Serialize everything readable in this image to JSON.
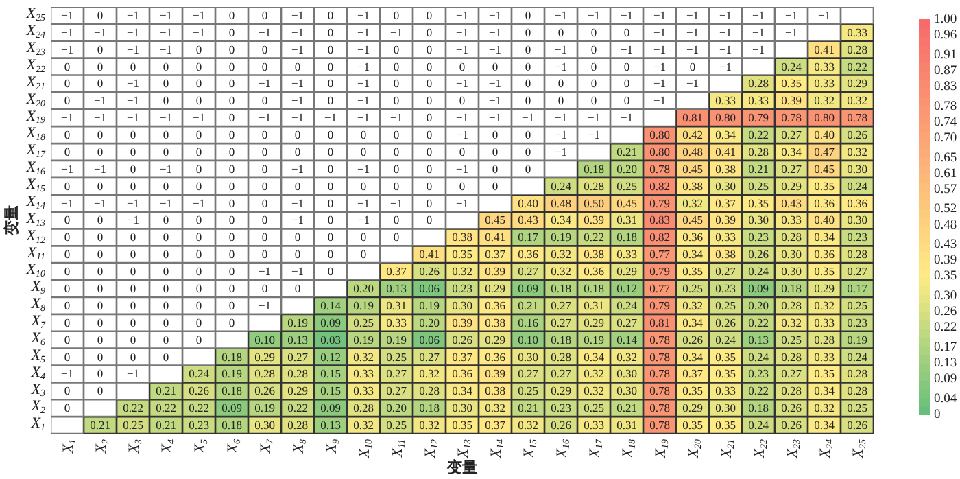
{
  "chart_data": {
    "type": "heatmap",
    "xlabel": "变量",
    "ylabel": "变量",
    "categories": [
      "X$_{1}$",
      "X$_{2}$",
      "X$_{3}$",
      "X$_{4}$",
      "X$_{5}$",
      "X$_{6}$",
      "X$_{7}$",
      "X$_{8}$",
      "X$_{9}$",
      "X$_{10}$",
      "X$_{11}$",
      "X$_{12}$",
      "X$_{13}$",
      "X$_{14}$",
      "X$_{15}$",
      "X$_{16}$",
      "X$_{17}$",
      "X$_{18}$",
      "X$_{19}$",
      "X$_{20}$",
      "X$_{21}$",
      "X$_{22}$",
      "X$_{23}$",
      "X$_{24}$",
      "X$_{25}$"
    ],
    "y_categories": [
      "X$_{25}$",
      "X$_{24}$",
      "X$_{23}$",
      "X$_{22}$",
      "X$_{21}$",
      "X$_{20}$",
      "X$_{19}$",
      "X$_{18}$",
      "X$_{17}$",
      "X$_{16}$",
      "X$_{15}$",
      "X$_{14}$",
      "X$_{13}$",
      "X$_{12}$",
      "X$_{11}$",
      "X$_{10}$",
      "X$_{9}$",
      "X$_{8}$",
      "X$_{7}$",
      "X$_{6}$",
      "X$_{5}$",
      "X$_{4}$",
      "X$_{3}$",
      "X$_{2}$",
      "X$_{1}$"
    ],
    "clim": [
      0,
      1
    ],
    "cticks": [
      0,
      0.04,
      0.09,
      0.13,
      0.17,
      0.22,
      0.26,
      {
        "value": 0.3,
        "label": "0.30"
      },
      0.35,
      0.39,
      0.43,
      0.48,
      0.52,
      0.57,
      0.61,
      0.65,
      {
        "value": 0.7,
        "label": "0.70"
      },
      0.74,
      0.78,
      0.83,
      0.87,
      0.91,
      0.96,
      {
        "value": 1,
        "label": "1.00"
      }
    ],
    "cells": [
      [
        null,
        null,
        null,
        null,
        null,
        null,
        null,
        null,
        null,
        null,
        null,
        null,
        null,
        null,
        null,
        null,
        null,
        null,
        null,
        null,
        null,
        null,
        null,
        null,
        null
      ],
      [
        null,
        null,
        null,
        null,
        null,
        null,
        null,
        null,
        null,
        null,
        null,
        null,
        null,
        null,
        null,
        null,
        null,
        null,
        null,
        null,
        null,
        null,
        null,
        null,
        0.33
      ],
      [
        null,
        null,
        null,
        null,
        null,
        null,
        null,
        null,
        null,
        null,
        null,
        null,
        null,
        null,
        null,
        null,
        null,
        null,
        null,
        null,
        null,
        null,
        null,
        0.41,
        0.28
      ],
      [
        null,
        null,
        null,
        null,
        null,
        null,
        null,
        null,
        null,
        null,
        null,
        null,
        null,
        null,
        null,
        null,
        null,
        null,
        null,
        null,
        null,
        null,
        0.24,
        0.33,
        0.22
      ],
      [
        null,
        null,
        null,
        null,
        null,
        null,
        null,
        null,
        null,
        null,
        null,
        null,
        null,
        null,
        null,
        null,
        null,
        null,
        null,
        null,
        null,
        0.28,
        0.35,
        0.33,
        0.29
      ],
      [
        null,
        null,
        null,
        null,
        null,
        null,
        null,
        null,
        null,
        null,
        null,
        null,
        null,
        null,
        null,
        null,
        null,
        null,
        null,
        null,
        0.33,
        0.33,
        0.39,
        0.32,
        0.32
      ],
      [
        null,
        null,
        null,
        null,
        null,
        null,
        null,
        null,
        null,
        null,
        null,
        null,
        null,
        null,
        null,
        null,
        null,
        null,
        null,
        0.81,
        0.8,
        0.79,
        0.78,
        0.8,
        0.78
      ],
      [
        null,
        null,
        null,
        null,
        null,
        null,
        null,
        null,
        null,
        null,
        null,
        null,
        null,
        null,
        null,
        null,
        null,
        null,
        0.8,
        0.42,
        0.34,
        0.22,
        0.27,
        0.4,
        0.26
      ],
      [
        null,
        null,
        null,
        null,
        null,
        null,
        null,
        null,
        null,
        null,
        null,
        null,
        null,
        null,
        null,
        null,
        null,
        0.21,
        0.8,
        0.48,
        0.41,
        0.28,
        0.34,
        0.47,
        0.32
      ],
      [
        null,
        null,
        null,
        null,
        null,
        null,
        null,
        null,
        null,
        null,
        null,
        null,
        null,
        null,
        null,
        null,
        0.18,
        0.2,
        0.78,
        0.45,
        0.38,
        0.21,
        0.27,
        0.45,
        0.3
      ],
      [
        null,
        null,
        null,
        null,
        null,
        null,
        null,
        null,
        null,
        null,
        null,
        null,
        null,
        null,
        null,
        0.24,
        0.28,
        0.25,
        0.82,
        0.38,
        0.3,
        0.25,
        0.29,
        0.35,
        0.24
      ],
      [
        null,
        null,
        null,
        null,
        null,
        null,
        null,
        null,
        null,
        null,
        null,
        null,
        null,
        null,
        0.4,
        0.48,
        0.5,
        0.45,
        0.79,
        0.32,
        0.37,
        0.35,
        0.43,
        0.36,
        0.36
      ],
      [
        null,
        null,
        null,
        null,
        null,
        null,
        null,
        null,
        null,
        null,
        null,
        null,
        null,
        0.45,
        0.43,
        0.34,
        0.39,
        0.31,
        0.83,
        0.45,
        0.39,
        0.3,
        0.33,
        0.4,
        0.3
      ],
      [
        null,
        null,
        null,
        null,
        null,
        null,
        null,
        null,
        null,
        null,
        null,
        null,
        0.38,
        0.41,
        0.17,
        0.19,
        0.22,
        0.18,
        0.82,
        0.36,
        0.33,
        0.23,
        0.28,
        0.34,
        0.23
      ],
      [
        null,
        null,
        null,
        null,
        null,
        null,
        null,
        null,
        null,
        null,
        null,
        0.41,
        0.35,
        0.37,
        0.36,
        0.32,
        0.38,
        0.33,
        0.77,
        0.34,
        0.38,
        0.26,
        0.3,
        0.36,
        0.28
      ],
      [
        null,
        null,
        null,
        null,
        null,
        null,
        null,
        null,
        null,
        null,
        0.37,
        0.26,
        0.32,
        0.39,
        0.27,
        0.32,
        0.36,
        0.29,
        0.79,
        0.35,
        0.27,
        0.24,
        0.3,
        0.35,
        0.27
      ],
      [
        null,
        null,
        null,
        null,
        null,
        null,
        null,
        null,
        null,
        0.2,
        0.13,
        0.06,
        0.23,
        0.29,
        0.09,
        0.18,
        0.18,
        0.12,
        0.77,
        0.25,
        0.23,
        0.09,
        0.18,
        0.29,
        0.17
      ],
      [
        null,
        null,
        null,
        null,
        null,
        null,
        null,
        null,
        0.14,
        0.19,
        0.31,
        0.19,
        0.3,
        0.36,
        0.21,
        0.27,
        0.31,
        0.24,
        0.79,
        0.32,
        0.25,
        0.2,
        0.28,
        0.32,
        0.25
      ],
      [
        null,
        null,
        null,
        null,
        null,
        null,
        null,
        0.19,
        0.09,
        0.25,
        0.33,
        0.2,
        0.39,
        0.38,
        0.16,
        0.27,
        0.29,
        0.27,
        0.81,
        0.34,
        0.26,
        0.22,
        0.32,
        0.33,
        0.23
      ],
      [
        null,
        null,
        null,
        null,
        null,
        null,
        0.1,
        0.13,
        0.03,
        0.19,
        0.19,
        0.06,
        0.26,
        0.29,
        0.1,
        0.18,
        0.19,
        0.14,
        0.78,
        0.26,
        0.24,
        0.13,
        0.25,
        0.28,
        0.19
      ],
      [
        null,
        null,
        null,
        null,
        null,
        0.18,
        0.29,
        0.27,
        0.12,
        0.32,
        0.25,
        0.27,
        0.37,
        0.36,
        0.3,
        0.28,
        0.34,
        0.32,
        0.78,
        0.34,
        0.35,
        0.24,
        0.28,
        0.33,
        0.24
      ],
      [
        null,
        null,
        null,
        null,
        0.24,
        0.19,
        0.28,
        0.28,
        0.15,
        0.33,
        0.27,
        0.32,
        0.36,
        0.39,
        0.27,
        0.27,
        0.32,
        0.3,
        0.78,
        0.37,
        0.35,
        0.23,
        0.27,
        0.35,
        0.28
      ],
      [
        null,
        null,
        null,
        0.21,
        0.26,
        0.18,
        0.26,
        0.29,
        0.15,
        0.33,
        0.27,
        0.28,
        0.34,
        0.38,
        0.25,
        0.29,
        0.32,
        0.3,
        0.78,
        0.35,
        0.33,
        0.22,
        0.28,
        0.34,
        0.28
      ],
      [
        null,
        null,
        0.22,
        0.22,
        0.22,
        0.09,
        0.19,
        0.22,
        0.09,
        0.28,
        0.2,
        0.18,
        0.3,
        0.32,
        0.21,
        0.23,
        0.25,
        0.21,
        0.78,
        0.29,
        0.3,
        0.18,
        0.26,
        0.32,
        0.25
      ],
      [
        null,
        0.21,
        0.25,
        0.21,
        0.23,
        0.18,
        0.3,
        0.28,
        0.13,
        0.32,
        0.25,
        0.32,
        0.35,
        0.37,
        0.32,
        0.26,
        0.33,
        0.31,
        0.78,
        0.35,
        0.35,
        0.24,
        0.26,
        0.34,
        0.26
      ]
    ],
    "cell_labels": [
      [
        "−1",
        "0",
        "−1",
        "−1",
        "−1",
        "0",
        "0",
        "−1",
        "0",
        "−1",
        "0",
        "0",
        "−1",
        "−1",
        "0",
        "−1",
        "−1",
        "−1",
        "−1",
        "−1",
        "−1",
        "−1",
        "−1",
        "−1",
        null
      ],
      [
        "−1",
        "−1",
        "−1",
        "−1",
        "−1",
        "0",
        "−1",
        "−1",
        "0",
        "−1",
        "−1",
        "0",
        "−1",
        "−1",
        "0",
        "0",
        "0",
        "0",
        "−1",
        "−1",
        "−1",
        "−1",
        "−1",
        null,
        "0.33"
      ],
      [
        "−1",
        "0",
        "−1",
        "−1",
        "0",
        "0",
        "0",
        "−1",
        "0",
        "−1",
        "0",
        "0",
        "−1",
        "−1",
        "0",
        "−1",
        "0",
        "−1",
        "−1",
        "−1",
        "−1",
        "−1",
        null,
        "0.41",
        "0.28"
      ],
      [
        "0",
        "0",
        "0",
        "0",
        "0",
        "0",
        "0",
        "0",
        "0",
        "−1",
        "0",
        "0",
        "0",
        "0",
        "0",
        "−1",
        "0",
        "0",
        "−1",
        "0",
        "−1",
        null,
        "0.24",
        "0.33",
        "0.22"
      ],
      [
        "0",
        "0",
        "−1",
        "0",
        "0",
        "0",
        "−1",
        "−1",
        "0",
        "−1",
        "0",
        "0",
        "−1",
        "−1",
        "0",
        "0",
        "0",
        "0",
        "−1",
        "−1",
        null,
        "0.28",
        "0.35",
        "0.33",
        "0.29"
      ],
      [
        "0",
        "−1",
        "−1",
        "0",
        "0",
        "0",
        "0",
        "−1",
        "0",
        "−1",
        "0",
        "0",
        "0",
        "−1",
        "0",
        "0",
        "0",
        "0",
        "−1",
        null,
        "0.33",
        "0.33",
        "0.39",
        "0.32",
        "0.32"
      ],
      [
        "−1",
        "−1",
        "−1",
        "−1",
        "−1",
        "0",
        "−1",
        "−1",
        "−1",
        "−1",
        "−1",
        "0",
        "−1",
        "−1",
        "−1",
        "−1",
        "−1",
        "−1",
        null,
        "0.81",
        "0.80",
        "0.79",
        "0.78",
        "0.80",
        "0.78"
      ],
      [
        "0",
        "0",
        "0",
        "0",
        "0",
        "0",
        "0",
        "0",
        "0",
        "0",
        "0",
        "0",
        "−1",
        "0",
        "0",
        "−1",
        "−1",
        null,
        "0.80",
        "0.42",
        "0.34",
        "0.22",
        "0.27",
        "0.40",
        "0.26"
      ],
      [
        "0",
        "0",
        "0",
        "0",
        "0",
        "0",
        "0",
        "0",
        "0",
        "0",
        "0",
        "0",
        "0",
        "0",
        "0",
        "−1",
        null,
        "0.21",
        "0.80",
        "0.48",
        "0.41",
        "0.28",
        "0.34",
        "0.47",
        "0.32"
      ],
      [
        "−1",
        "−1",
        "0",
        "−1",
        "0",
        "0",
        "0",
        "−1",
        "0",
        "−1",
        "0",
        "0",
        "−1",
        "0",
        "0",
        null,
        "0.18",
        "0.20",
        "0.78",
        "0.45",
        "0.38",
        "0.21",
        "0.27",
        "0.45",
        "0.30"
      ],
      [
        "0",
        "0",
        "0",
        "0",
        "0",
        "0",
        "0",
        "0",
        "0",
        "0",
        "0",
        "0",
        "0",
        "0",
        null,
        "0.24",
        "0.28",
        "0.25",
        "0.82",
        "0.38",
        "0.30",
        "0.25",
        "0.29",
        "0.35",
        "0.24"
      ],
      [
        "−1",
        "−1",
        "−1",
        "−1",
        "−1",
        "0",
        "0",
        "−1",
        "0",
        "−1",
        "−1",
        "0",
        "−1",
        null,
        "0.40",
        "0.48",
        "0.50",
        "0.45",
        "0.79",
        "0.32",
        "0.37",
        "0.35",
        "0.43",
        "0.36",
        "0.36"
      ],
      [
        "0",
        "0",
        "−1",
        "0",
        "0",
        "0",
        "0",
        "−1",
        "0",
        "−1",
        "0",
        "0",
        null,
        "0.45",
        "0.43",
        "0.34",
        "0.39",
        "0.31",
        "0.83",
        "0.45",
        "0.39",
        "0.30",
        "0.33",
        "0.40",
        "0.30"
      ],
      [
        "0",
        "0",
        "0",
        "0",
        "0",
        "0",
        "0",
        "0",
        "0",
        "0",
        "0",
        null,
        "0.38",
        "0.41",
        "0.17",
        "0.19",
        "0.22",
        "0.18",
        "0.82",
        "0.36",
        "0.33",
        "0.23",
        "0.28",
        "0.34",
        "0.23"
      ],
      [
        "0",
        "0",
        "0",
        "0",
        "0",
        "0",
        "0",
        "0",
        "0",
        "0",
        null,
        "0.41",
        "0.35",
        "0.37",
        "0.36",
        "0.32",
        "0.38",
        "0.33",
        "0.77",
        "0.34",
        "0.38",
        "0.26",
        "0.30",
        "0.36",
        "0.28"
      ],
      [
        "0",
        "0",
        "0",
        "0",
        "0",
        "0",
        "−1",
        "−1",
        "0",
        null,
        "0.37",
        "0.26",
        "0.32",
        "0.39",
        "0.27",
        "0.32",
        "0.36",
        "0.29",
        "0.79",
        "0.35",
        "0.27",
        "0.24",
        "0.30",
        "0.35",
        "0.27"
      ],
      [
        "0",
        "0",
        "0",
        "0",
        "0",
        "0",
        "0",
        "0",
        null,
        "0.20",
        "0.13",
        "0.06",
        "0.23",
        "0.29",
        "0.09",
        "0.18",
        "0.18",
        "0.12",
        "0.77",
        "0.25",
        "0.23",
        "0.09",
        "0.18",
        "0.29",
        "0.17"
      ],
      [
        "0",
        "0",
        "0",
        "0",
        "0",
        "0",
        "−1",
        null,
        "0.14",
        "0.19",
        "0.31",
        "0.19",
        "0.30",
        "0.36",
        "0.21",
        "0.27",
        "0.31",
        "0.24",
        "0.79",
        "0.32",
        "0.25",
        "0.20",
        "0.28",
        "0.32",
        "0.25"
      ],
      [
        "0",
        "0",
        "0",
        "0",
        "0",
        "0",
        null,
        "0.19",
        "0.09",
        "0.25",
        "0.33",
        "0.20",
        "0.39",
        "0.38",
        "0.16",
        "0.27",
        "0.29",
        "0.27",
        "0.81",
        "0.34",
        "0.26",
        "0.22",
        "0.32",
        "0.33",
        "0.23"
      ],
      [
        "0",
        "0",
        "0",
        "0",
        "0",
        null,
        "0.10",
        "0.13",
        "0.03",
        "0.19",
        "0.19",
        "0.06",
        "0.26",
        "0.29",
        "0.10",
        "0.18",
        "0.19",
        "0.14",
        "0.78",
        "0.26",
        "0.24",
        "0.13",
        "0.25",
        "0.28",
        "0.19"
      ],
      [
        "0",
        "0",
        "0",
        "0",
        null,
        "0.18",
        "0.29",
        "0.27",
        "0.12",
        "0.32",
        "0.25",
        "0.27",
        "0.37",
        "0.36",
        "0.30",
        "0.28",
        "0.34",
        "0.32",
        "0.78",
        "0.34",
        "0.35",
        "0.24",
        "0.28",
        "0.33",
        "0.24"
      ],
      [
        "−1",
        "0",
        "−1",
        null,
        "0.24",
        "0.19",
        "0.28",
        "0.28",
        "0.15",
        "0.33",
        "0.27",
        "0.32",
        "0.36",
        "0.39",
        "0.27",
        "0.27",
        "0.32",
        "0.30",
        "0.78",
        "0.37",
        "0.35",
        "0.23",
        "0.27",
        "0.35",
        "0.28"
      ],
      [
        "0",
        "0",
        null,
        "0.21",
        "0.26",
        "0.18",
        "0.26",
        "0.29",
        "0.15",
        "0.33",
        "0.27",
        "0.28",
        "0.34",
        "0.38",
        "0.25",
        "0.29",
        "0.32",
        "0.30",
        "0.78",
        "0.35",
        "0.33",
        "0.22",
        "0.28",
        "0.34",
        "0.28"
      ],
      [
        "0",
        null,
        "0.22",
        "0.22",
        "0.22",
        "0.09",
        "0.19",
        "0.22",
        "0.09",
        "0.28",
        "0.20",
        "0.18",
        "0.30",
        "0.32",
        "0.21",
        "0.23",
        "0.25",
        "0.21",
        "0.78",
        "0.29",
        "0.30",
        "0.18",
        "0.26",
        "0.32",
        "0.25"
      ],
      [
        null,
        "0.21",
        "0.25",
        "0.21",
        "0.23",
        "0.18",
        "0.30",
        "0.28",
        "0.13",
        "0.32",
        "0.25",
        "0.32",
        "0.35",
        "0.37",
        "0.32",
        "0.26",
        "0.33",
        "0.31",
        "0.78",
        "0.35",
        "0.35",
        "0.24",
        "0.26",
        "0.34",
        "0.26"
      ]
    ]
  }
}
